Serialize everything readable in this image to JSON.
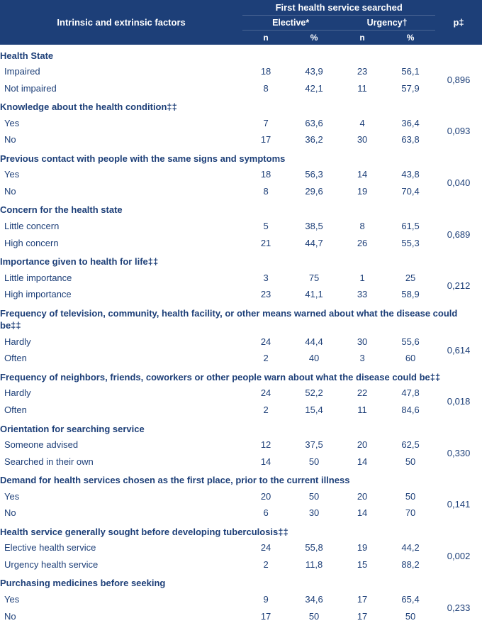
{
  "header": {
    "factors": "Intrinsic and extrinsic factors",
    "group": "First health service searched",
    "elective": "Elective*",
    "urgency": "Urgency†",
    "n": "n",
    "pct": "%",
    "p": "p‡"
  },
  "sections": [
    {
      "title": "Health State",
      "rows": [
        {
          "label": "Impaired",
          "en": "18",
          "ep": "43,9",
          "un": "23",
          "up": "56,1"
        },
        {
          "label": "Not impaired",
          "en": "8",
          "ep": "42,1",
          "un": "11",
          "up": "57,9"
        }
      ],
      "p": "0,896"
    },
    {
      "title": "Knowledge about the health condition‡‡",
      "rows": [
        {
          "label": "Yes",
          "en": "7",
          "ep": "63,6",
          "un": "4",
          "up": "36,4"
        },
        {
          "label": "No",
          "en": "17",
          "ep": "36,2",
          "un": "30",
          "up": "63,8"
        }
      ],
      "p": "0,093"
    },
    {
      "title": "Previous contact with people with the same signs and symptoms",
      "rows": [
        {
          "label": "Yes",
          "en": "18",
          "ep": "56,3",
          "un": "14",
          "up": "43,8"
        },
        {
          "label": "No",
          "en": "8",
          "ep": "29,6",
          "un": "19",
          "up": "70,4"
        }
      ],
      "p": "0,040"
    },
    {
      "title": "Concern for the health state",
      "rows": [
        {
          "label": "Little concern",
          "en": "5",
          "ep": "38,5",
          "un": "8",
          "up": "61,5"
        },
        {
          "label": "High concern",
          "en": "21",
          "ep": "44,7",
          "un": "26",
          "up": "55,3"
        }
      ],
      "p": "0,689"
    },
    {
      "title": "Importance given to health for life‡‡",
      "rows": [
        {
          "label": "Little importance",
          "en": "3",
          "ep": "75",
          "un": "1",
          "up": "25"
        },
        {
          "label": "High importance",
          "en": "23",
          "ep": "41,1",
          "un": "33",
          "up": "58,9"
        }
      ],
      "p": "0,212"
    },
    {
      "title": "Frequency of television, community, health facility, or other means warned about what the disease could be‡‡",
      "rows": [
        {
          "label": "Hardly",
          "en": "24",
          "ep": "44,4",
          "un": "30",
          "up": "55,6"
        },
        {
          "label": "Often",
          "en": "2",
          "ep": "40",
          "un": "3",
          "up": "60"
        }
      ],
      "p": "0,614"
    },
    {
      "title": "Frequency of neighbors, friends, coworkers or other people warn about what the disease could be‡‡",
      "rows": [
        {
          "label": "Hardly",
          "en": "24",
          "ep": "52,2",
          "un": "22",
          "up": "47,8"
        },
        {
          "label": "Often",
          "en": "2",
          "ep": "15,4",
          "un": "11",
          "up": "84,6"
        }
      ],
      "p": "0,018"
    },
    {
      "title": "Orientation for searching service",
      "rows": [
        {
          "label": "Someone advised",
          "en": "12",
          "ep": "37,5",
          "un": "20",
          "up": "62,5"
        },
        {
          "label": "Searched in their own",
          "en": "14",
          "ep": "50",
          "un": "14",
          "up": "50"
        }
      ],
      "p": "0,330"
    },
    {
      "title": "Demand for health services chosen as the first place, prior to the current illness",
      "rows": [
        {
          "label": "Yes",
          "en": "20",
          "ep": "50",
          "un": "20",
          "up": "50"
        },
        {
          "label": "No",
          "en": "6",
          "ep": "30",
          "un": "14",
          "up": "70"
        }
      ],
      "p": "0,141"
    },
    {
      "title": "Health service generally sought before developing tuberculosis‡‡",
      "rows": [
        {
          "label": "Elective health service",
          "en": "24",
          "ep": "55,8",
          "un": "19",
          "up": "44,2"
        },
        {
          "label": "Urgency health service",
          "en": "2",
          "ep": "11,8",
          "un": "15",
          "up": "88,2"
        }
      ],
      "p": "0,002"
    },
    {
      "title": "Purchasing medicines before seeking",
      "rows": [
        {
          "label": "Yes",
          "en": "9",
          "ep": "34,6",
          "un": "17",
          "up": "65,4"
        },
        {
          "label": "No",
          "en": "17",
          "ep": "50",
          "un": "17",
          "up": "50"
        }
      ],
      "p": "0,233"
    }
  ],
  "style": {
    "header_bg": "#1d3f78",
    "header_fg": "#ffffff",
    "body_fg": "#1d3f78",
    "font_size_body": 13,
    "font_size_header": 13
  }
}
